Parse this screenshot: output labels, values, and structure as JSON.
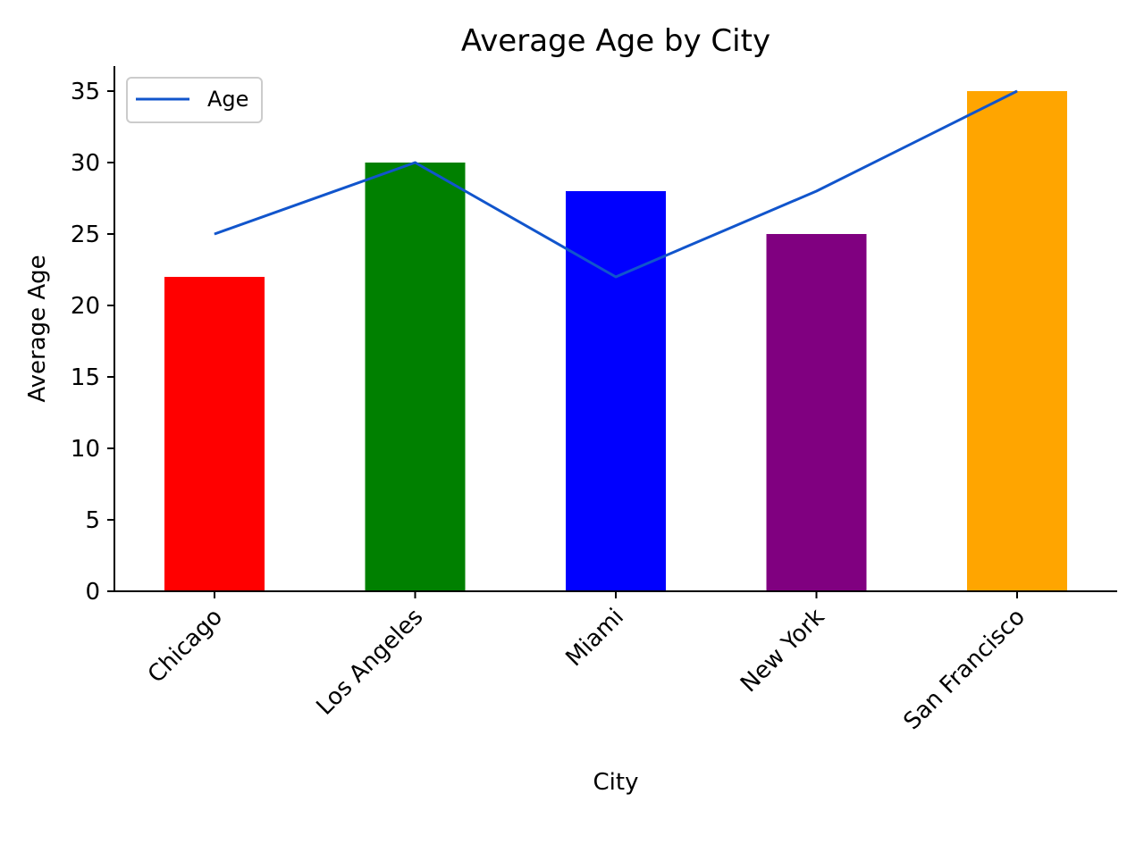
{
  "chart_data": {
    "type": "bar",
    "title": "Average Age by City",
    "xlabel": "City",
    "ylabel": "Average Age",
    "categories": [
      "Chicago",
      "Los Angeles",
      "Miami",
      "New York",
      "San Francisco"
    ],
    "bars": {
      "values": [
        22,
        30,
        28,
        25,
        35
      ],
      "colors": [
        "#ff0000",
        "#008000",
        "#0000ff",
        "#800080",
        "#ffa500"
      ]
    },
    "series": [
      {
        "name": "Age",
        "type": "line",
        "values": [
          25,
          30,
          22,
          28,
          35
        ],
        "color": "#1155cc"
      }
    ],
    "ylim": [
      0,
      36.75
    ],
    "yticks": [
      0,
      5,
      10,
      15,
      20,
      25,
      30,
      35
    ],
    "legend": {
      "position": "top-left",
      "entries": [
        "Age"
      ]
    },
    "grid": false
  }
}
